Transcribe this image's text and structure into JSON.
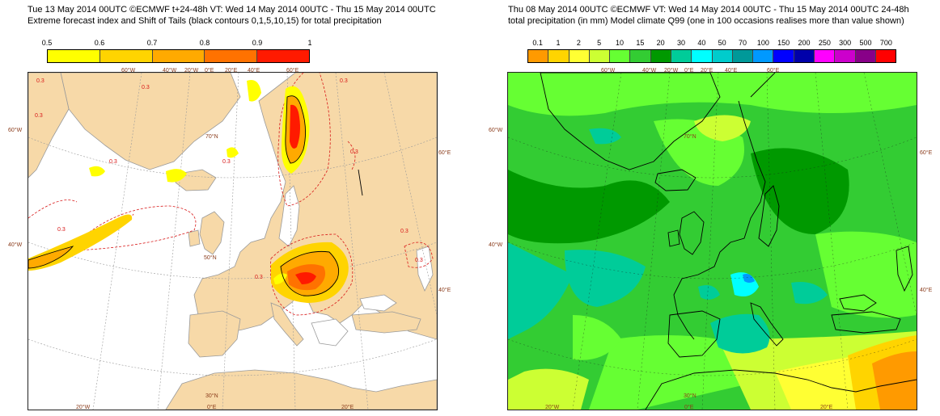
{
  "left": {
    "title_line1": "Tue 13 May 2014 00UTC ©ECMWF t+24-48h  VT: Wed 14 May 2014 00UTC - Thu 15 May 2014 00UTC",
    "title_line2": "Extreme forecast index and Shift of Tails (black contours 0,1,5,10,15) for total precipitation",
    "colorbar_labels": [
      "0.5",
      "0.6",
      "0.7",
      "0.8",
      "0.9",
      "1"
    ],
    "colorbar_colors": [
      "#ffff00",
      "#ffd400",
      "#ffaa00",
      "#ff7200",
      "#ff1a00"
    ],
    "contour_label": "0.3",
    "lon_labels_top": [
      "60°W",
      "40°W",
      "20°W",
      "0°E",
      "20°E",
      "40°E",
      "60°E"
    ],
    "lon_labels_bottom": [
      "20°W",
      "0°E",
      "20°E"
    ],
    "lat_labels_left": [
      "60°W",
      "40°W"
    ],
    "lat_labels_right": [
      "60°E",
      "40°E"
    ],
    "inner_lat_labels": [
      "70°N",
      "50°N",
      "30°N"
    ]
  },
  "right": {
    "title_line1": "Thu 08 May 2014 00UTC ©ECMWF VT: Wed 14 May 2014 00UTC - Thu 15 May 2014 00UTC   24-48h",
    "title_line2": "total precipitation (in mm)  Model climate Q99 (one in 100 occasions realises more than value shown)",
    "colorbar_labels": [
      "0.1",
      "1",
      "2",
      "5",
      "10",
      "15",
      "20",
      "30",
      "40",
      "50",
      "70",
      "100",
      "150",
      "200",
      "250",
      "300",
      "500",
      "700"
    ],
    "colorbar_colors": [
      "#ff9a00",
      "#ffd400",
      "#ffff33",
      "#ccff33",
      "#66ff33",
      "#33cc33",
      "#009900",
      "#00cc99",
      "#00ffff",
      "#00cccc",
      "#009999",
      "#0099ff",
      "#0000ff",
      "#0000aa",
      "#ff00ff",
      "#cc00cc",
      "#880088",
      "#ff0000"
    ],
    "lon_labels_top": [
      "60°W",
      "40°W",
      "20°W",
      "0°E",
      "20°E",
      "40°E",
      "60°E"
    ],
    "lon_labels_bottom": [
      "20°W",
      "0°E",
      "20°E"
    ],
    "lat_labels_left": [
      "60°W",
      "40°W"
    ],
    "lat_labels_right": [
      "60°E",
      "40°E"
    ],
    "inner_lat_labels": [
      "70°N",
      "30°N"
    ]
  },
  "colors": {
    "land": "#f7d9a8",
    "sea": "#ffffff",
    "coast": "#9a9a9a",
    "contour_red": "#d81818",
    "grid": "#9a9a9a"
  }
}
